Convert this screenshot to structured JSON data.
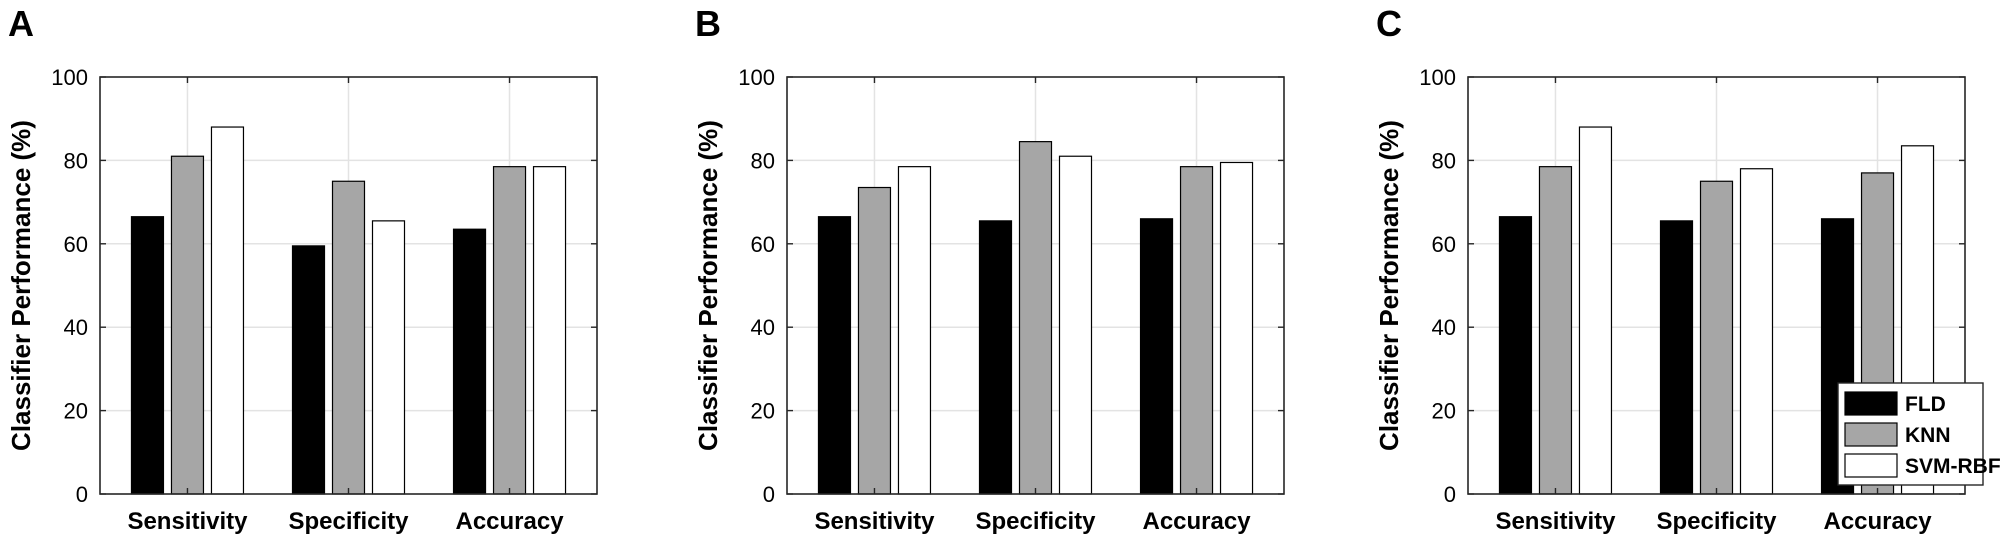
{
  "colors": {
    "FLD": "#000000",
    "KNN": "#a6a6a6",
    "SVM-RBF": "#ffffff",
    "grid": "#e3e3e3"
  },
  "chart_data": [
    {
      "panel": "A",
      "type": "bar",
      "categories": [
        "Sensitivity",
        "Specificity",
        "Accuracy"
      ],
      "series": [
        {
          "name": "FLD",
          "values": [
            66.5,
            59.5,
            63.5
          ]
        },
        {
          "name": "KNN",
          "values": [
            81,
            75,
            78.5
          ]
        },
        {
          "name": "SVM-RBF",
          "values": [
            88,
            65.5,
            78.5
          ]
        }
      ],
      "ylabel": "Classifier Performance (%)",
      "ylim": [
        0,
        100
      ],
      "yticks": [
        0,
        20,
        40,
        60,
        80,
        100
      ],
      "grid": true,
      "legend": false
    },
    {
      "panel": "B",
      "type": "bar",
      "categories": [
        "Sensitivity",
        "Specificity",
        "Accuracy"
      ],
      "series": [
        {
          "name": "FLD",
          "values": [
            66.5,
            65.5,
            66
          ]
        },
        {
          "name": "KNN",
          "values": [
            73.5,
            84.5,
            78.5
          ]
        },
        {
          "name": "SVM-RBF",
          "values": [
            78.5,
            81,
            79.5
          ]
        }
      ],
      "ylabel": "Classifier Performance (%)",
      "ylim": [
        0,
        100
      ],
      "yticks": [
        0,
        20,
        40,
        60,
        80,
        100
      ],
      "grid": true,
      "legend": false
    },
    {
      "panel": "C",
      "type": "bar",
      "categories": [
        "Sensitivity",
        "Specificity",
        "Accuracy"
      ],
      "series": [
        {
          "name": "FLD",
          "values": [
            66.5,
            65.5,
            66
          ]
        },
        {
          "name": "KNN",
          "values": [
            78.5,
            75,
            77
          ]
        },
        {
          "name": "SVM-RBF",
          "values": [
            88,
            78,
            83.5
          ]
        }
      ],
      "ylabel": "Classifier Performance (%)",
      "ylim": [
        0,
        100
      ],
      "yticks": [
        0,
        20,
        40,
        60,
        80,
        100
      ],
      "grid": true,
      "legend": true,
      "legend_position": "bottom-right"
    }
  ]
}
